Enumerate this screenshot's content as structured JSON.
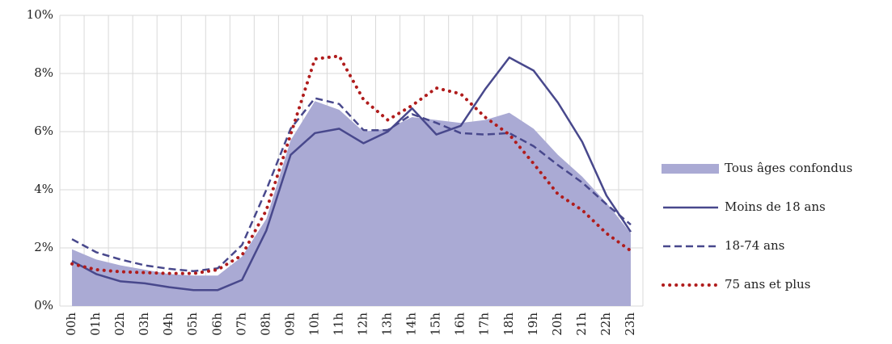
{
  "chart_data": {
    "type": "line",
    "categories": [
      "00h",
      "01h",
      "02h",
      "03h",
      "04h",
      "05h",
      "06h",
      "07h",
      "08h",
      "09h",
      "10h",
      "11h",
      "12h",
      "13h",
      "14h",
      "15h",
      "16h",
      "17h",
      "18h",
      "19h",
      "20h",
      "21h",
      "22h",
      "23h"
    ],
    "series": [
      {
        "name": "Tous âges confondus",
        "color": "#aaaad4",
        "kind": "area",
        "dash": "solid",
        "values": [
          1.95,
          1.6,
          1.4,
          1.25,
          1.1,
          1.05,
          1.05,
          1.7,
          3.0,
          5.7,
          7.05,
          6.75,
          6.0,
          6.1,
          6.5,
          6.4,
          6.3,
          6.4,
          6.65,
          6.1,
          5.2,
          4.45,
          3.55,
          2.5
        ]
      },
      {
        "name": "Moins de 18 ans",
        "color": "#48488c",
        "kind": "line",
        "dash": "solid",
        "values": [
          1.55,
          1.1,
          0.85,
          0.78,
          0.65,
          0.55,
          0.55,
          0.9,
          2.6,
          5.2,
          5.95,
          6.1,
          5.6,
          6.0,
          6.8,
          5.9,
          6.2,
          7.45,
          8.55,
          8.1,
          7.0,
          5.65,
          3.8,
          2.55
        ]
      },
      {
        "name": "18-74 ans",
        "color": "#48488c",
        "kind": "line",
        "dash": "dashed",
        "values": [
          2.3,
          1.85,
          1.6,
          1.4,
          1.28,
          1.2,
          1.3,
          2.1,
          4.0,
          6.1,
          7.15,
          6.95,
          6.05,
          6.05,
          6.6,
          6.3,
          5.95,
          5.9,
          5.95,
          5.5,
          4.85,
          4.25,
          3.5,
          2.8
        ]
      },
      {
        "name": "75 ans et plus",
        "color": "#b01c1c",
        "kind": "line",
        "dash": "dotted",
        "values": [
          1.45,
          1.25,
          1.18,
          1.15,
          1.12,
          1.12,
          1.25,
          1.75,
          3.3,
          5.9,
          8.5,
          8.6,
          7.1,
          6.4,
          6.9,
          7.5,
          7.3,
          6.5,
          5.9,
          4.9,
          3.85,
          3.3,
          2.5,
          1.9
        ]
      }
    ],
    "ylim": [
      0,
      10
    ],
    "yticks": [
      {
        "value": 0,
        "label": "0%"
      },
      {
        "value": 2,
        "label": "2%"
      },
      {
        "value": 4,
        "label": "4%"
      },
      {
        "value": 6,
        "label": "6%"
      },
      {
        "value": 8,
        "label": "8%"
      },
      {
        "value": 10,
        "label": "10%"
      }
    ],
    "grid": true,
    "legend": "right"
  }
}
